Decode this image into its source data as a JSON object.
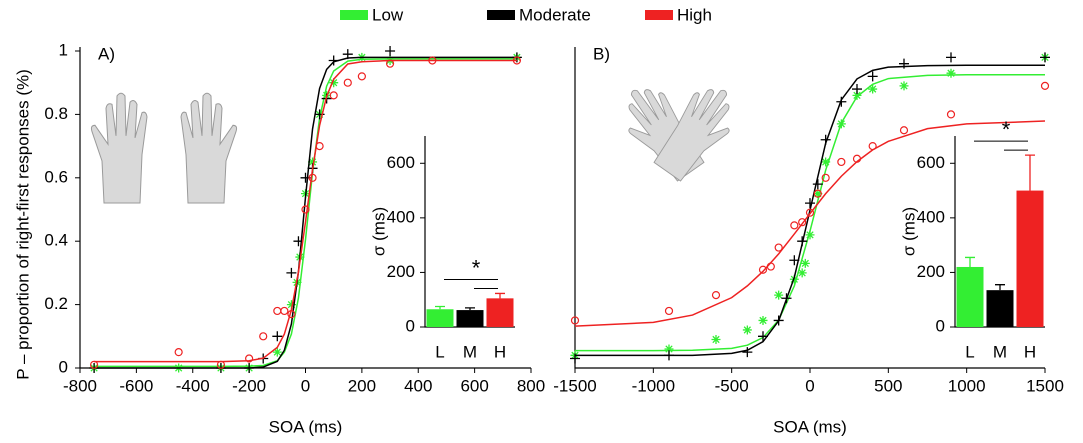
{
  "chart_data": [
    {
      "type": "scatter",
      "title": "A)",
      "xlabel": "SOA (ms)",
      "ylabel": "P – proportion of right-first responses (%)",
      "xlim": [
        -800,
        800
      ],
      "xticks": [
        -800,
        -600,
        -400,
        -200,
        0,
        200,
        400,
        600,
        800
      ],
      "ylim": [
        0,
        1
      ],
      "yticks": [
        0,
        0.2,
        0.4,
        0.6,
        0.8,
        1
      ],
      "fit_x": [
        -750,
        -300,
        -200,
        -150,
        -100,
        -75,
        -50,
        -25,
        0,
        25,
        50,
        75,
        100,
        150,
        200,
        300,
        750
      ],
      "series": [
        {
          "name": "Low",
          "color": "#33ee33",
          "marker": "asterisk",
          "x": [
            -750,
            -450,
            -300,
            -200,
            -100,
            -50,
            -30,
            -20,
            0,
            25,
            50,
            75,
            100,
            200,
            300,
            750
          ],
          "values": [
            0,
            0,
            0,
            0,
            0.05,
            0.2,
            0.27,
            0.35,
            0.55,
            0.65,
            0.8,
            0.86,
            0.9,
            0.98,
            0.97,
            0.98
          ],
          "fit": [
            0.005,
            0.005,
            0.006,
            0.008,
            0.023,
            0.05,
            0.107,
            0.221,
            0.405,
            0.617,
            0.788,
            0.889,
            0.937,
            0.968,
            0.974,
            0.975,
            0.975
          ]
        },
        {
          "name": "Moderate",
          "color": "#000000",
          "marker": "plus",
          "x": [
            -750,
            -300,
            -200,
            -150,
            -100,
            -50,
            -25,
            0,
            25,
            50,
            75,
            100,
            150,
            300,
            750
          ],
          "values": [
            0,
            0,
            0,
            0.03,
            0.1,
            0.3,
            0.4,
            0.6,
            0.63,
            0.8,
            0.85,
            0.97,
            0.99,
            1,
            0.98
          ],
          "fit": [
            0,
            0,
            0,
            0.003,
            0.021,
            0.056,
            0.139,
            0.304,
            0.539,
            0.754,
            0.882,
            0.942,
            0.966,
            0.978,
            0.98,
            0.98,
            0.98
          ]
        },
        {
          "name": "High",
          "color": "#ee2222",
          "marker": "circle",
          "x": [
            -750,
            -450,
            -300,
            -200,
            -150,
            -100,
            -75,
            -50,
            0,
            25,
            50,
            100,
            150,
            200,
            300,
            450,
            750
          ],
          "values": [
            0.01,
            0.05,
            0.01,
            0.03,
            0.1,
            0.18,
            0.18,
            0.17,
            0.5,
            0.6,
            0.7,
            0.86,
            0.9,
            0.92,
            0.96,
            0.97,
            0.97
          ],
          "fit": [
            0.02,
            0.02,
            0.023,
            0.031,
            0.065,
            0.107,
            0.183,
            0.303,
            0.461,
            0.627,
            0.765,
            0.857,
            0.911,
            0.959,
            0.966,
            0.97,
            0.97
          ]
        }
      ]
    },
    {
      "type": "scatter",
      "title": "B)",
      "xlabel": "SOA (ms)",
      "xlim": [
        -1500,
        1500
      ],
      "xticks": [
        -1500,
        -1000,
        -500,
        0,
        500,
        1000,
        1500
      ],
      "ylim": [
        0,
        1
      ],
      "fit_x": [
        -1500,
        -1000,
        -750,
        -500,
        -400,
        -300,
        -200,
        -100,
        0,
        100,
        200,
        300,
        400,
        500,
        750,
        1000,
        1500
      ],
      "series": [
        {
          "color": "#33ee33",
          "marker": "asterisk",
          "x": [
            -1500,
            -900,
            -600,
            -400,
            -300,
            -200,
            -100,
            -50,
            -30,
            0,
            50,
            100,
            200,
            300,
            400,
            600,
            900,
            1500
          ],
          "values": [
            0.04,
            0.06,
            0.09,
            0.12,
            0.15,
            0.23,
            0.28,
            0.3,
            0.33,
            0.42,
            0.55,
            0.65,
            0.77,
            0.86,
            0.88,
            0.89,
            0.93,
            0.98
          ],
          "fit": [
            0.055,
            0.055,
            0.056,
            0.062,
            0.072,
            0.096,
            0.151,
            0.259,
            0.432,
            0.624,
            0.773,
            0.856,
            0.895,
            0.913,
            0.923,
            0.925,
            0.925
          ]
        },
        {
          "color": "#000000",
          "marker": "plus",
          "x": [
            -1500,
            -900,
            -400,
            -300,
            -200,
            -150,
            -100,
            -50,
            0,
            50,
            100,
            200,
            300,
            400,
            600,
            900,
            1500
          ],
          "values": [
            0.03,
            0.04,
            0.05,
            0.1,
            0.15,
            0.22,
            0.34,
            0.4,
            0.52,
            0.58,
            0.72,
            0.84,
            0.88,
            0.92,
            0.96,
            0.98,
            0.98
          ],
          "fit": [
            0.04,
            0.04,
            0.04,
            0.046,
            0.056,
            0.083,
            0.149,
            0.286,
            0.498,
            0.709,
            0.846,
            0.912,
            0.939,
            0.949,
            0.954,
            0.955,
            0.955
          ]
        },
        {
          "color": "#ee2222",
          "marker": "circle",
          "x": [
            -1500,
            -900,
            -600,
            -300,
            -250,
            -200,
            -100,
            -50,
            0,
            50,
            100,
            200,
            300,
            400,
            600,
            900,
            1500
          ],
          "values": [
            0.15,
            0.18,
            0.23,
            0.31,
            0.32,
            0.38,
            0.45,
            0.46,
            0.49,
            0.55,
            0.6,
            0.65,
            0.66,
            0.7,
            0.75,
            0.8,
            0.89
          ],
          "fit": [
            0.132,
            0.144,
            0.167,
            0.222,
            0.259,
            0.305,
            0.36,
            0.423,
            0.487,
            0.55,
            0.605,
            0.651,
            0.688,
            0.715,
            0.755,
            0.77,
            0.779
          ]
        }
      ]
    },
    {
      "type": "bar",
      "ylabel": "σ (ms)",
      "categories": [
        "L",
        "M",
        "H"
      ],
      "values": [
        65,
        62,
        105
      ],
      "errors": [
        10,
        8,
        18
      ],
      "colors": [
        "#33ee33",
        "#000000",
        "#ee2222"
      ],
      "ylim": [
        0,
        700
      ],
      "yticks": [
        0,
        200,
        400,
        600
      ],
      "annotation": "*"
    },
    {
      "type": "bar",
      "ylabel": "σ (ms)",
      "categories": [
        "L",
        "M",
        "H"
      ],
      "values": [
        220,
        135,
        500
      ],
      "errors": [
        35,
        20,
        130
      ],
      "colors": [
        "#33ee33",
        "#000000",
        "#ee2222"
      ],
      "ylim": [
        0,
        700
      ],
      "yticks": [
        0,
        200,
        400,
        600
      ],
      "annotation": "*"
    }
  ]
}
